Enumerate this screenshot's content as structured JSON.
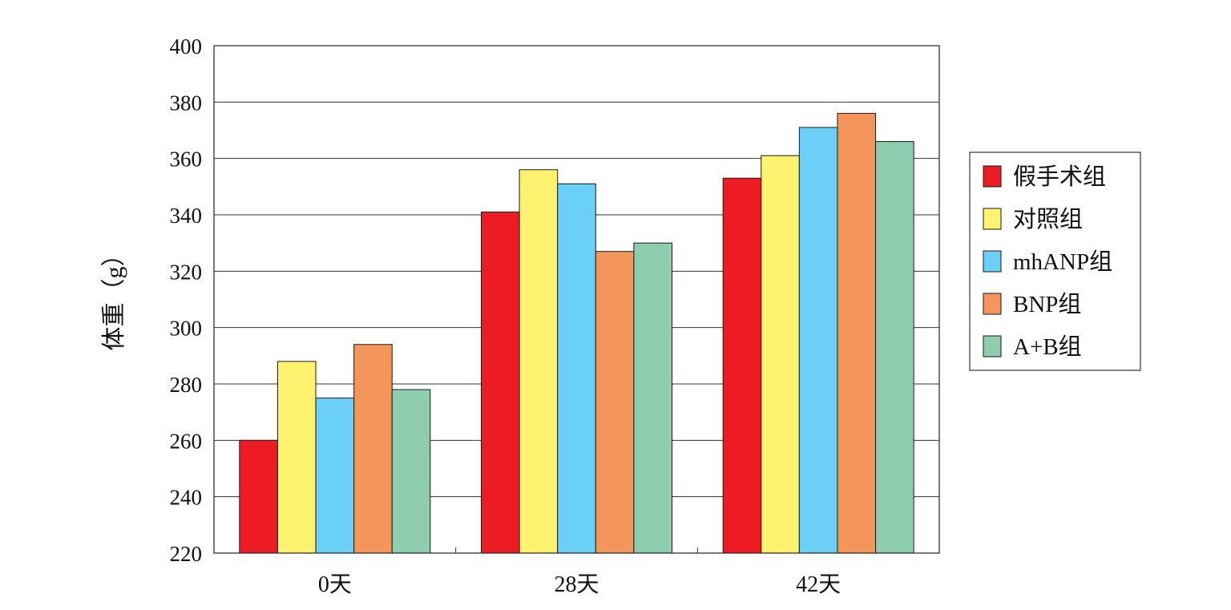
{
  "chart_data": {
    "type": "bar",
    "title": "",
    "xlabel": "",
    "ylabel": "体重（g）",
    "ylim": [
      220,
      400
    ],
    "yticks": [
      220,
      240,
      260,
      280,
      300,
      320,
      340,
      360,
      380,
      400
    ],
    "grid": true,
    "legend_position": "right",
    "categories": [
      "0天",
      "28天",
      "42天"
    ],
    "series": [
      {
        "name": "假手术组",
        "color": "#ed1c24",
        "values": [
          260,
          341,
          353
        ]
      },
      {
        "name": "对照组",
        "color": "#fff26e",
        "values": [
          288,
          356,
          361
        ]
      },
      {
        "name": "mhANP组",
        "color": "#6ccff6",
        "values": [
          275,
          351,
          371
        ]
      },
      {
        "name": "BNP组",
        "color": "#f4955a",
        "values": [
          294,
          327,
          376
        ]
      },
      {
        "name": "A+B组",
        "color": "#8ecdae",
        "values": [
          278,
          330,
          366
        ]
      }
    ]
  }
}
